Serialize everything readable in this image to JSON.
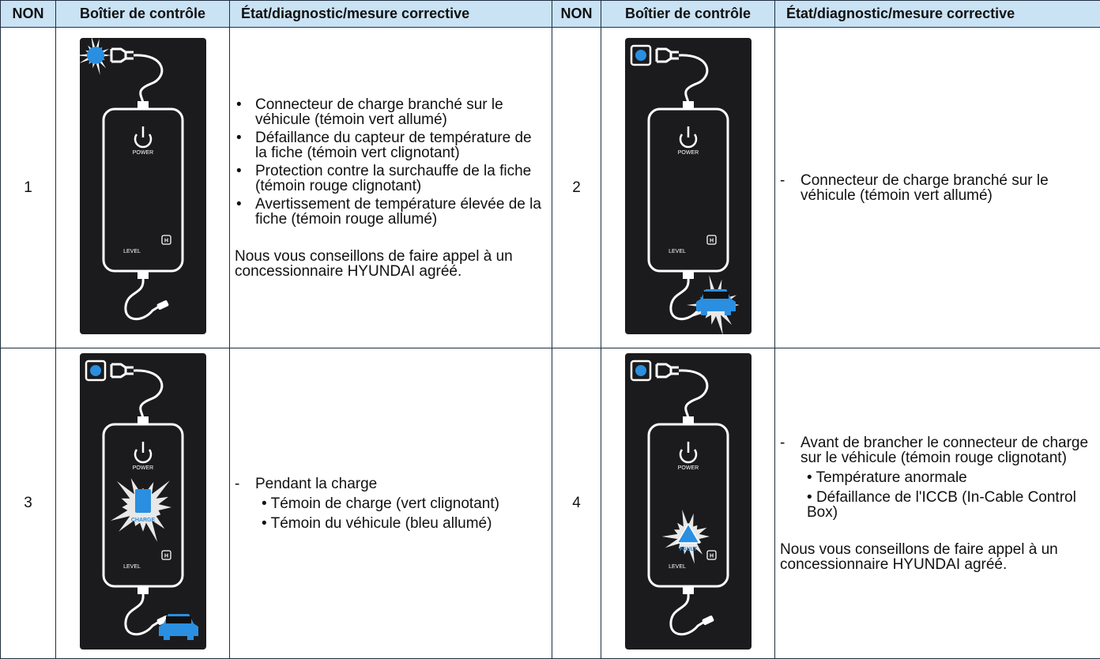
{
  "header": {
    "columns": [
      "NON",
      "Boîtier de contrôle",
      "État/diagnostic/mesure corrective"
    ]
  },
  "device_labels": {
    "power": "POWER",
    "level": "LEVEL",
    "h": "H",
    "charge": "CHARGE",
    "fault": "FAULT"
  },
  "table": {
    "rows": [
      [
        {
          "number": "1",
          "bullets": [
            "Connecteur de charge branché sur le véhicule (témoin vert allumé)",
            "Défaillance du capteur de température de la fiche (témoin vert clignotant)",
            "Protection contre la surchauffe de la fiche (témoin rouge clignotant)",
            "Avertissement de température élevée de la fiche (témoin rouge allumé)"
          ],
          "note": "Nous vous conseillons de faire appel à un concessionnaire HYUNDAI agréé."
        },
        {
          "number": "2",
          "dash": "Connecteur de charge branché sur le véhicule (témoin vert allumé)"
        }
      ],
      [
        {
          "number": "3",
          "dash": "Pendant la charge",
          "sub_bullets": [
            "Témoin de charge (vert clignotant)",
            "Témoin du véhicule (bleu allumé)"
          ]
        },
        {
          "number": "4",
          "dash": "Avant de brancher le connecteur de charge sur le véhicule (témoin rouge clignotant)",
          "sub_bullets": [
            "Température anormale",
            "Défaillance de l'ICCB (In-Cable Control Box)"
          ],
          "note": "Nous vous conseillons de faire appel à un concessionnaire HYUNDAI agréé."
        }
      ]
    ]
  }
}
